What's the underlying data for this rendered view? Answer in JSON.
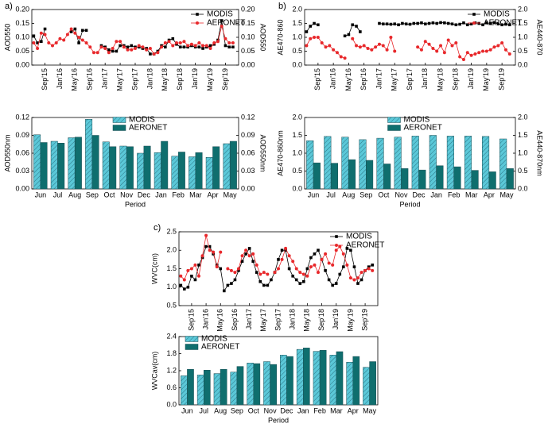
{
  "chart_data": [
    {
      "type": "line",
      "label": "a)",
      "ylabel": "AOD550",
      "y2label": "AOD550",
      "legend": "upper right",
      "categories": [
        null,
        null,
        null,
        "Sep'15",
        null,
        null,
        null,
        "Jan'16",
        null,
        null,
        null,
        "May'16",
        null,
        null,
        null,
        "Sep'16",
        null,
        null,
        null,
        "Jan'17",
        null,
        null,
        null,
        "May'17",
        null,
        null,
        null,
        "Sep'17",
        null,
        null,
        null,
        "Jan'18",
        null,
        null,
        null,
        "May'18",
        null,
        null,
        null,
        "Sep'18",
        null,
        null,
        null,
        "Jan'19",
        null,
        null,
        null,
        "May'19",
        null,
        null,
        null,
        "Sep'19",
        null,
        null,
        null
      ],
      "ylim": [
        0,
        0.2
      ],
      "yticks": [
        {
          "value": 0,
          "label": "0.00"
        },
        0.05,
        {
          "value": 0.1,
          "label": "0.10"
        },
        0.15,
        {
          "value": 0.2,
          "label": "0.20"
        }
      ],
      "y2lim": [
        0,
        0.2
      ],
      "y2ticks": [
        {
          "value": 0,
          "label": "0.00"
        },
        0.05,
        {
          "value": 0.1,
          "label": "0.10"
        },
        0.15,
        {
          "value": 0.2,
          "label": "0.20"
        }
      ],
      "series": [
        {
          "name": "MODIS",
          "color": "#000000",
          "marker": "square",
          "values": [
            0.105,
            0.08,
            0.085,
            0.13,
            null,
            null,
            null,
            null,
            null,
            null,
            0.12,
            0.13,
            0.08,
            0.125,
            0.125,
            null,
            null,
            null,
            0.07,
            0.065,
            0.055,
            0.05,
            0.05,
            0.07,
            0.07,
            0.065,
            0.07,
            0.065,
            0.065,
            0.06,
            0.06,
            0.04,
            0.04,
            0.05,
            0.07,
            0.065,
            0.09,
            0.095,
            0.075,
            0.065,
            0.065,
            0.065,
            0.07,
            0.065,
            0.065,
            0.06,
            0.065,
            0.07,
            0.075,
            0.09,
            0.16,
            0.07,
            0.065,
            0.065,
            null
          ]
        },
        {
          "name": "AERONET",
          "color": "#e8282b",
          "marker": "circle",
          "values": [
            0.08,
            0.06,
            0.115,
            0.11,
            0.08,
            0.07,
            0.08,
            0.095,
            0.09,
            0.11,
            0.13,
            0.115,
            0.1,
            0.09,
            0.08,
            0.065,
            0.045,
            0.045,
            0.065,
            0.06,
            0.045,
            0.06,
            0.085,
            0.085,
            0.065,
            0.055,
            0.055,
            0.06,
            0.07,
            0.065,
            0.055,
            0.06,
            0.04,
            0.045,
            0.065,
            0.08,
            0.085,
            0.07,
            0.08,
            0.08,
            0.085,
            0.07,
            0.075,
            0.07,
            0.08,
            0.07,
            0.07,
            0.06,
            0.08,
            0.085,
            0.14,
            0.095,
            0.08,
            0.08,
            null
          ]
        }
      ]
    },
    {
      "type": "bar",
      "xlabel": "Period",
      "ylabel": "AOD550nm",
      "y2label": "AOD550nm",
      "legend": "upper center",
      "categories": [
        "Jun",
        "Jul",
        "Aug",
        "Sep",
        "Oct",
        "Nov",
        "Dec",
        "Jan",
        "Feb",
        "Mar",
        "Apr",
        "May"
      ],
      "ylim": [
        0,
        0.12
      ],
      "yticks": [
        {
          "value": 0,
          "label": "0.00"
        },
        0.03,
        0.06,
        0.09,
        0.12
      ],
      "y2lim": [
        0,
        0.12
      ],
      "y2ticks": [
        {
          "value": 0,
          "label": "0.00"
        },
        0.03,
        0.06,
        0.09,
        0.12
      ],
      "series": [
        {
          "name": "MODIS",
          "color": "#5bc8d8",
          "hatch": true,
          "values": [
            0.091,
            0.08,
            0.086,
            0.117,
            0.079,
            0.072,
            0.06,
            0.061,
            0.055,
            0.054,
            0.053,
            0.076
          ]
        },
        {
          "name": "AERONET",
          "color": "#0f6e6e",
          "values": [
            0.078,
            0.077,
            0.087,
            0.09,
            0.071,
            0.071,
            0.072,
            0.08,
            0.062,
            0.061,
            0.071,
            0.08
          ]
        }
      ]
    },
    {
      "type": "line",
      "label": "b)",
      "ylabel": "AE470-860",
      "y2label": "AE440-870",
      "legend": "upper right",
      "categories": [
        null,
        null,
        null,
        "Sep'15",
        null,
        null,
        null,
        "Jan'16",
        null,
        null,
        null,
        "May'16",
        null,
        null,
        null,
        "Sep'16",
        null,
        null,
        null,
        "Jan'17",
        null,
        null,
        null,
        "May'17",
        null,
        null,
        null,
        "Sep'17",
        null,
        null,
        null,
        "Jan'18",
        null,
        null,
        null,
        "May'18",
        null,
        null,
        null,
        "Sep'18",
        null,
        null,
        null,
        "Jan'19",
        null,
        null,
        null,
        "May'19",
        null,
        null,
        null,
        "Sep'19",
        null,
        null,
        null
      ],
      "ylim": [
        0,
        2
      ],
      "yticks": [
        {
          "value": 0,
          "label": "0.0"
        },
        0.5,
        {
          "value": 1,
          "label": "1.0"
        },
        1.5,
        {
          "value": 2,
          "label": "2.0"
        }
      ],
      "y2lim": [
        0,
        2
      ],
      "y2ticks": [
        {
          "value": 0,
          "label": "0.0"
        },
        0.5,
        {
          "value": 1,
          "label": "1.0"
        },
        1.5,
        {
          "value": 2,
          "label": "2.0"
        }
      ],
      "series": [
        {
          "name": "MODIS",
          "color": "#000000",
          "marker": "square",
          "values": [
            1.2,
            1.4,
            1.5,
            1.45,
            null,
            null,
            null,
            null,
            null,
            null,
            1.05,
            1.1,
            1.45,
            1.4,
            1.2,
            null,
            null,
            null,
            null,
            1.5,
            1.48,
            1.48,
            1.47,
            1.48,
            1.45,
            1.5,
            1.48,
            1.47,
            1.5,
            1.5,
            1.52,
            1.48,
            1.5,
            1.52,
            1.5,
            1.53,
            1.52,
            1.5,
            1.48,
            1.45,
            1.47,
            1.52,
            1.45,
            1.48,
            1.52,
            1.5,
            1.45,
            1.52,
            1.5,
            1.53,
            1.48,
            1.45,
            1.47,
            1.45,
            null
          ]
        },
        {
          "name": "AERONET",
          "color": "#e8282b",
          "marker": "circle",
          "values": [
            0.7,
            0.95,
            1.0,
            1.0,
            0.8,
            0.65,
            0.7,
            0.55,
            0.45,
            0.3,
            0.25,
            null,
            0.95,
            0.7,
            0.65,
            0.7,
            0.6,
            0.55,
            0.65,
            0.75,
            0.7,
            0.55,
            1.0,
            0.5,
            null,
            null,
            null,
            null,
            null,
            0.65,
            0.55,
            0.85,
            0.75,
            0.6,
            0.5,
            0.7,
            0.45,
            0.9,
            0.7,
            0.8,
            0.3,
            0.2,
            0.45,
            0.35,
            0.4,
            0.45,
            0.5,
            0.5,
            0.55,
            0.65,
            0.7,
            0.8,
            0.55,
            0.4,
            null
          ]
        }
      ]
    },
    {
      "type": "bar",
      "xlabel": "Period",
      "ylabel": "AE470-860nm",
      "y2label": "AE440-870nm",
      "legend": "upper center",
      "categories": [
        "Jun",
        "Jul",
        "Aug",
        "Sep",
        "Oct",
        "Nov",
        "Dec",
        "Jan",
        "Feb",
        "Mar",
        "Apr",
        "May"
      ],
      "ylim": [
        0,
        2
      ],
      "yticks": [
        {
          "value": 0,
          "label": "0.0"
        },
        0.5,
        {
          "value": 1,
          "label": "1.0"
        },
        1.5,
        {
          "value": 2,
          "label": "2.0"
        }
      ],
      "y2lim": [
        0,
        2
      ],
      "y2ticks": [
        {
          "value": 0,
          "label": "0.0"
        },
        0.5,
        {
          "value": 1,
          "label": "1.0"
        },
        1.5,
        {
          "value": 2,
          "label": "2.0"
        }
      ],
      "series": [
        {
          "name": "MODIS",
          "color": "#5bc8d8",
          "hatch": true,
          "values": [
            1.35,
            1.47,
            1.45,
            1.38,
            1.42,
            1.45,
            1.48,
            1.5,
            1.48,
            1.48,
            1.47,
            1.4
          ]
        },
        {
          "name": "AERONET",
          "color": "#0f6e6e",
          "values": [
            0.73,
            0.72,
            0.82,
            0.8,
            0.7,
            0.57,
            0.53,
            0.65,
            0.62,
            0.52,
            0.48,
            0.57
          ]
        }
      ]
    },
    {
      "type": "line",
      "label": "c)",
      "ylabel": "WVC(cm)",
      "legend": "upper right",
      "categories": [
        null,
        null,
        null,
        "Sep'15",
        null,
        null,
        null,
        "Jan'16",
        null,
        null,
        null,
        "May'16",
        null,
        null,
        null,
        "Sep'16",
        null,
        null,
        null,
        "Jan'17",
        null,
        null,
        null,
        "May'17",
        null,
        null,
        null,
        "Sep'17",
        null,
        null,
        null,
        "Jan'18",
        null,
        null,
        null,
        "May'18",
        null,
        null,
        null,
        "Sep'18",
        null,
        null,
        null,
        "Jan'19",
        null,
        null,
        null,
        "May'19",
        null,
        null,
        null,
        "Sep'19",
        null,
        null,
        null
      ],
      "ylim": [
        0.5,
        2.5
      ],
      "yticks": [
        0.5,
        {
          "value": 1,
          "label": "1.0"
        },
        1.5,
        {
          "value": 2,
          "label": "2.0"
        },
        2.5
      ],
      "series": [
        {
          "name": "MODIS",
          "color": "#000000",
          "marker": "square",
          "values": [
            1.05,
            0.95,
            1.0,
            1.3,
            1.2,
            1.6,
            1.8,
            2.1,
            2.1,
            1.9,
            1.6,
            1.5,
            0.9,
            1.05,
            1.1,
            1.2,
            1.45,
            1.7,
            1.9,
            2.05,
            1.7,
            1.4,
            1.15,
            1.05,
            1.05,
            1.2,
            1.4,
            1.75,
            2.0,
            2.0,
            1.5,
            1.3,
            1.2,
            1.1,
            1.15,
            1.5,
            1.8,
            1.9,
            2.0,
            1.75,
            1.45,
            1.2,
            1.05,
            1.1,
            1.35,
            1.55,
            2.05,
            2.0,
            1.55,
            1.1,
            1.2,
            1.45,
            1.55,
            1.6,
            null
          ]
        },
        {
          "name": "AERONET",
          "color": "#e8282b",
          "marker": "circle",
          "values": [
            1.3,
            1.2,
            1.45,
            1.5,
            1.6,
            1.3,
            1.85,
            2.4,
            2.0,
            1.95,
            1.55,
            1.95,
            null,
            1.5,
            1.45,
            1.4,
            1.5,
            1.85,
            2.0,
            1.85,
            1.9,
            1.6,
            1.35,
            1.4,
            1.35,
            null,
            1.4,
            1.5,
            1.75,
            2.05,
            1.85,
            1.7,
            1.5,
            1.4,
            1.35,
            1.3,
            1.55,
            1.6,
            1.4,
            1.75,
            1.9,
            1.65,
            1.6,
            2.0,
            2.1,
            1.9,
            1.6,
            1.25,
            1.2,
            1.25,
            1.4,
            1.45,
            1.5,
            1.45,
            null
          ]
        }
      ]
    },
    {
      "type": "bar",
      "xlabel": "Period",
      "ylabel": "WVCav(cm)",
      "legend": "upper left",
      "categories": [
        "Jun",
        "Jul",
        "Aug",
        "Sep",
        "Oct",
        "Nov",
        "Dec",
        "Jan",
        "Feb",
        "Mar",
        "Apr",
        "May"
      ],
      "ylim": [
        0,
        2.4
      ],
      "yticks": [
        {
          "value": 0,
          "label": "0.0"
        },
        0.6,
        1.2,
        1.8,
        2.4
      ],
      "series": [
        {
          "name": "MODIS",
          "color": "#5bc8d8",
          "hatch": true,
          "values": [
            1.02,
            1.05,
            1.1,
            1.15,
            1.47,
            1.52,
            1.75,
            1.95,
            1.88,
            1.75,
            1.5,
            1.32
          ]
        },
        {
          "name": "AERONET",
          "color": "#0f6e6e",
          "values": [
            1.25,
            1.22,
            1.25,
            1.35,
            1.45,
            1.42,
            1.7,
            2.0,
            1.92,
            1.87,
            1.7,
            1.52
          ]
        }
      ]
    }
  ]
}
